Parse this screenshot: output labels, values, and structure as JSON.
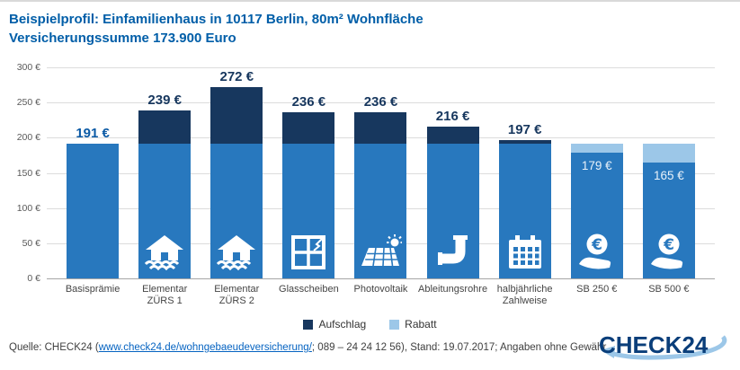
{
  "title": {
    "line1": "Beispielprofil: Einfamilienhaus in 10117 Berlin, 80m² Wohnfläche",
    "line2": "Versicherungssumme 173.900 Euro"
  },
  "chart_data": {
    "type": "bar",
    "title": "Beispielprofil: Einfamilienhaus in 10117 Berlin, 80m² Wohnfläche – Versicherungssumme 173.900 Euro",
    "ylabel": "",
    "xlabel": "",
    "ylim": [
      0,
      300
    ],
    "ytick_step": 50,
    "yticks": [
      "300 €",
      "250 €",
      "200 €",
      "150 €",
      "100 €",
      "50 €",
      "0 €"
    ],
    "categories": [
      "Basisprämie",
      "Elementar ZÜRS 1",
      "Elementar ZÜRS 2",
      "Glasscheiben",
      "Photovoltaik",
      "Ableitungsrohre",
      "halbjährliche Zahlweise",
      "SB 250 €",
      "SB 500 €"
    ],
    "values": [
      191,
      239,
      272,
      236,
      236,
      216,
      197,
      179,
      165
    ],
    "base_premium": 191,
    "colors": {
      "base": "#2878BE",
      "surcharge": "#17375E",
      "discount": "#9CC7E8",
      "value_text": "#17375E",
      "inside_value_text": "#E9F2FA"
    },
    "bars": [
      {
        "category_lines": [
          "Basisprämie"
        ],
        "value": 191,
        "value_label": "191 €",
        "blue": 191,
        "surcharge": 0,
        "discount": 0,
        "icon": null,
        "label_position": "above",
        "value_color": "#0B5AA5"
      },
      {
        "category_lines": [
          "Elementar",
          "ZÜRS 1"
        ],
        "value": 239,
        "value_label": "239 €",
        "blue": 191,
        "surcharge": 48,
        "discount": 0,
        "icon": "flood-house-icon",
        "label_position": "above"
      },
      {
        "category_lines": [
          "Elementar",
          "ZÜRS 2"
        ],
        "value": 272,
        "value_label": "272 €",
        "blue": 191,
        "surcharge": 81,
        "discount": 0,
        "icon": "flood-house-icon",
        "label_position": "above"
      },
      {
        "category_lines": [
          "Glasscheiben"
        ],
        "value": 236,
        "value_label": "236 €",
        "blue": 191,
        "surcharge": 45,
        "discount": 0,
        "icon": "window-crack-icon",
        "label_position": "above"
      },
      {
        "category_lines": [
          "Photovoltaik"
        ],
        "value": 236,
        "value_label": "236 €",
        "blue": 191,
        "surcharge": 45,
        "discount": 0,
        "icon": "solar-panel-icon",
        "label_position": "above"
      },
      {
        "category_lines": [
          "Ableitungsrohre"
        ],
        "value": 216,
        "value_label": "216 €",
        "blue": 191,
        "surcharge": 25,
        "discount": 0,
        "icon": "pipe-icon",
        "label_position": "above"
      },
      {
        "category_lines": [
          "halbjährliche",
          "Zahlweise"
        ],
        "value": 197,
        "value_label": "197 €",
        "blue": 191,
        "surcharge": 6,
        "discount": 0,
        "icon": "calendar-icon",
        "label_position": "above"
      },
      {
        "category_lines": [
          "SB 250 €"
        ],
        "value": 179,
        "value_label": "179 €",
        "blue": 179,
        "surcharge": 0,
        "discount": 12,
        "icon": "euro-hand-icon",
        "label_position": "inside"
      },
      {
        "category_lines": [
          "SB 500 €"
        ],
        "value": 165,
        "value_label": "165 €",
        "blue": 165,
        "surcharge": 0,
        "discount": 26,
        "icon": "euro-hand-icon",
        "label_position": "inside"
      }
    ],
    "legend": [
      {
        "label": "Aufschlag",
        "color": "#17375E"
      },
      {
        "label": "Rabatt",
        "color": "#9CC7E8"
      }
    ],
    "legend_position": "bottom-center",
    "grid": true
  },
  "footer": {
    "prefix": "Quelle: CHECK24 (",
    "link": "www.check24.de/wohngebaeudeversicherung/",
    "suffix": "; 089 – 24 24 12 56), Stand: 19.07.2017; Angaben ohne Gewähr"
  },
  "logo": {
    "text": "CHECK24",
    "text_color": "#0A3E7A",
    "swoosh_color": "#9CC7E8"
  }
}
